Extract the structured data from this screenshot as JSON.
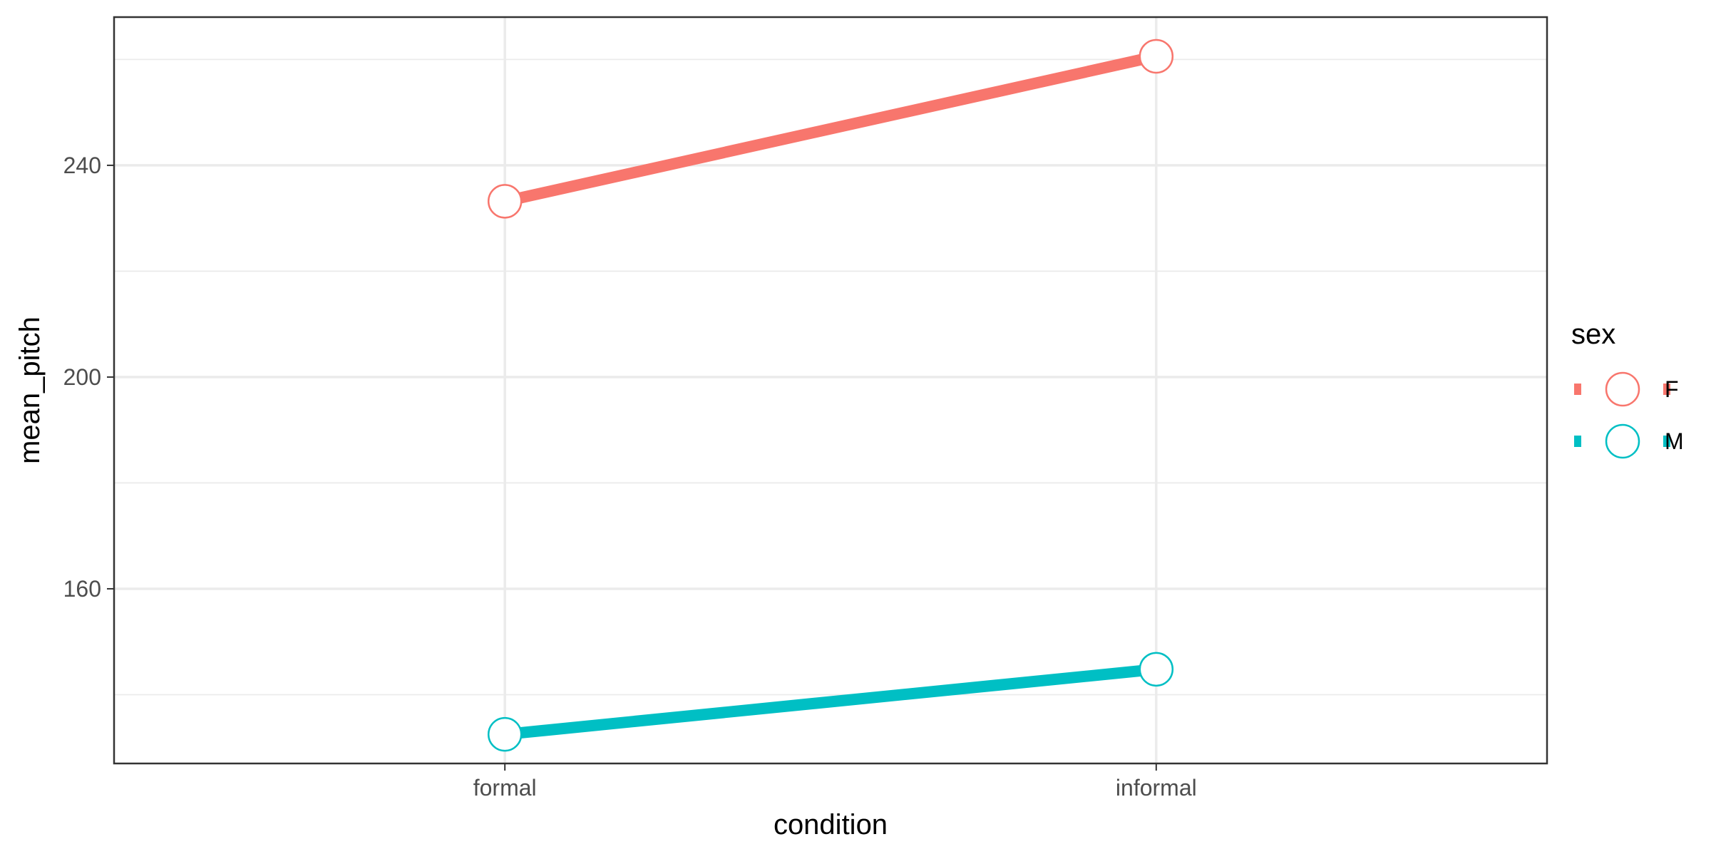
{
  "chart_data": {
    "type": "line",
    "xlabel": "condition",
    "ylabel": "mean_pitch",
    "categories": [
      "formal",
      "informal"
    ],
    "yticks": [
      160,
      200,
      240
    ],
    "ylim": [
      127,
      268
    ],
    "grid": true,
    "legend": {
      "title": "sex",
      "placement": "right"
    },
    "series": [
      {
        "name": "F",
        "color": "#F8766D",
        "values": [
          233.2,
          260.6
        ]
      },
      {
        "name": "M",
        "color": "#00BFC4",
        "values": [
          132.5,
          144.8
        ]
      }
    ]
  }
}
